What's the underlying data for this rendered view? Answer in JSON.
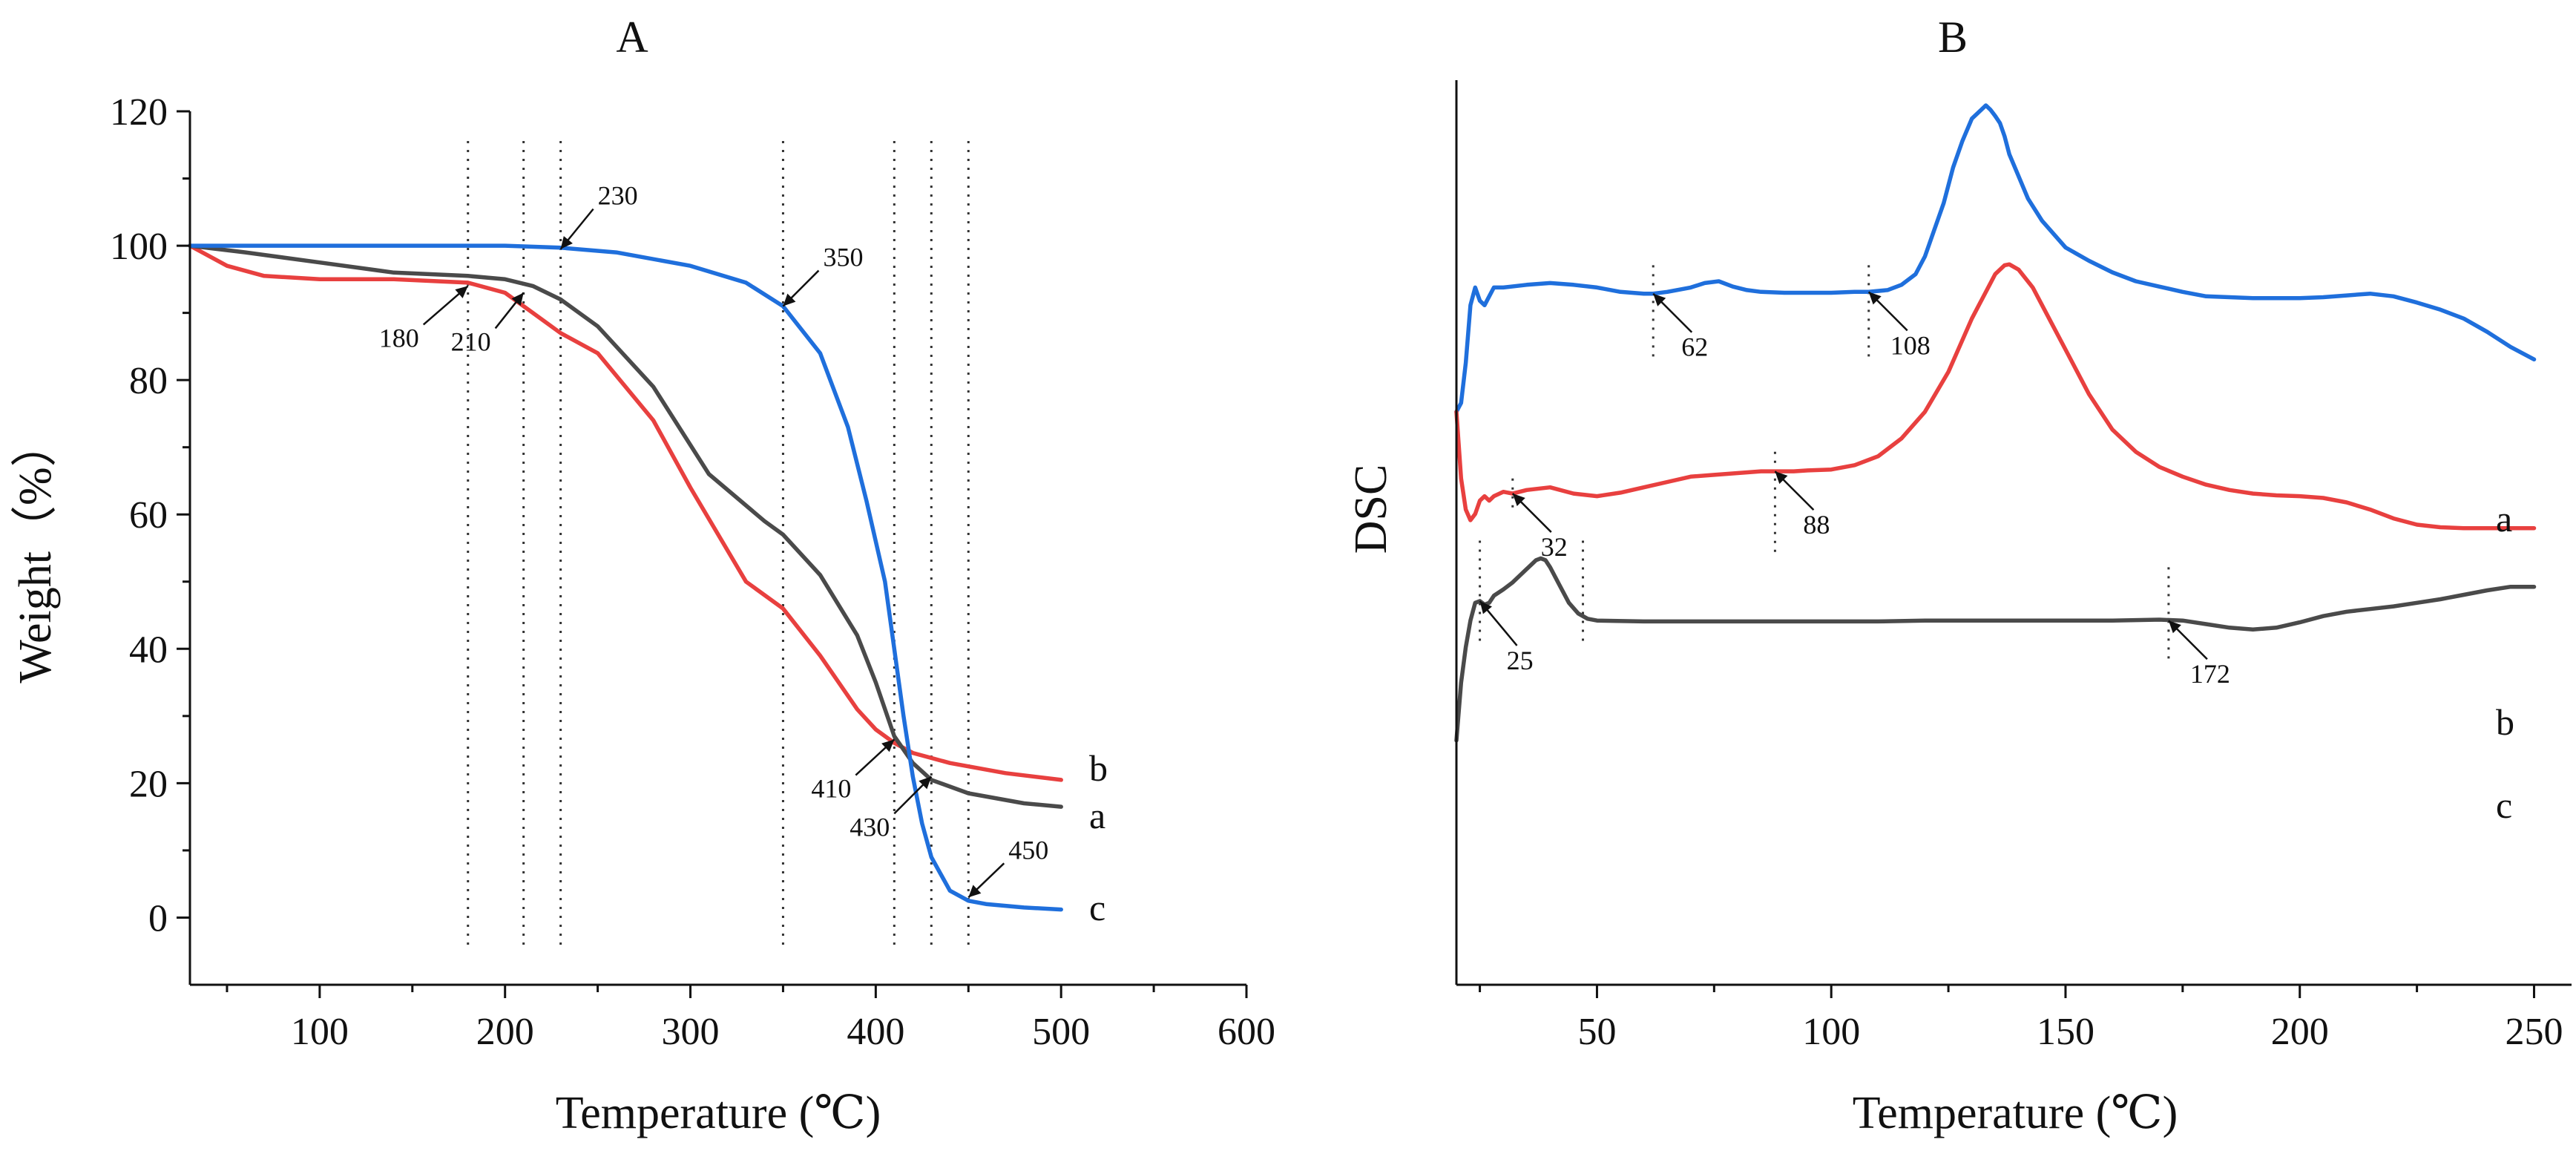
{
  "chart_data": [
    {
      "panel": "A",
      "type": "line",
      "title": "A",
      "xlabel": "Temperature (℃)",
      "ylabel": "Weight（%）",
      "xlim": [
        30,
        600
      ],
      "ylim": [
        -10,
        120
      ],
      "xticks": [
        100,
        200,
        300,
        400,
        500,
        600
      ],
      "yticks": [
        0,
        20,
        40,
        60,
        80,
        100,
        120
      ],
      "colors": {
        "a": "#4a4a4a",
        "b": "#e8403f",
        "c": "#1f6fdc"
      },
      "series": [
        {
          "name": "a",
          "x": [
            30,
            60,
            100,
            140,
            180,
            200,
            215,
            230,
            250,
            280,
            310,
            340,
            350,
            370,
            390,
            400,
            410,
            420,
            430,
            450,
            480,
            500
          ],
          "y": [
            100,
            99,
            97.5,
            96,
            95.5,
            95,
            94,
            92,
            88,
            79,
            66,
            59,
            57,
            51,
            42,
            35,
            27,
            23,
            20.5,
            18.5,
            17,
            16.5
          ]
        },
        {
          "name": "b",
          "x": [
            30,
            50,
            70,
            100,
            140,
            180,
            200,
            215,
            230,
            250,
            280,
            300,
            330,
            350,
            370,
            390,
            400,
            410,
            420,
            440,
            470,
            500
          ],
          "y": [
            100,
            97,
            95.5,
            95,
            95,
            94.5,
            93,
            90,
            87,
            84,
            74,
            64,
            50,
            46,
            39,
            31,
            28,
            26,
            24.5,
            23,
            21.5,
            20.5
          ],
          "annotations_not_curve": true
        },
        {
          "name": "c",
          "x": [
            30,
            100,
            200,
            230,
            260,
            300,
            330,
            350,
            370,
            385,
            395,
            405,
            410,
            415,
            420,
            425,
            430,
            440,
            450,
            460,
            480,
            500
          ],
          "y": [
            100,
            100,
            100,
            99.7,
            99,
            97,
            94.5,
            91,
            84,
            73,
            62,
            50,
            40,
            30,
            21,
            14,
            9,
            4,
            2.5,
            2,
            1.5,
            1.2
          ]
        }
      ],
      "vlines": [
        180,
        210,
        230,
        350,
        410,
        430,
        450
      ],
      "annotations": [
        {
          "text": "180",
          "x": 180,
          "y": 94
        },
        {
          "text": "210",
          "x": 210,
          "y": 93
        },
        {
          "text": "230",
          "x": 230,
          "y": 99.5
        },
        {
          "text": "350",
          "x": 350,
          "y": 91
        },
        {
          "text": "410",
          "x": 410,
          "y": 26.5
        },
        {
          "text": "430",
          "x": 430,
          "y": 21
        },
        {
          "text": "450",
          "x": 450,
          "y": 3
        }
      ]
    },
    {
      "panel": "B",
      "type": "line",
      "title": "B",
      "xlabel": "Temperature (℃)",
      "ylabel": "DSC",
      "xlim": [
        20,
        258
      ],
      "ylim": [
        0,
        100
      ],
      "y_tick_labels": "none",
      "xticks": [
        50,
        100,
        150,
        200,
        250
      ],
      "colors": {
        "a": "#1f6fdc",
        "b": "#e8403f",
        "c": "#4a4a4a"
      },
      "series": [
        {
          "name": "a",
          "x": [
            20,
            21,
            22,
            23,
            24,
            25,
            26,
            27,
            28,
            30,
            35,
            40,
            45,
            50,
            55,
            60,
            62,
            65,
            70,
            73,
            76,
            79,
            82,
            85,
            90,
            95,
            100,
            105,
            108,
            112,
            115,
            118,
            120,
            122,
            124,
            126,
            128,
            130,
            132,
            133,
            134,
            135,
            136,
            137,
            138,
            140,
            142,
            145,
            150,
            155,
            160,
            165,
            170,
            175,
            180,
            185,
            190,
            195,
            200,
            205,
            210,
            215,
            220,
            225,
            230,
            235,
            240,
            245,
            250
          ],
          "y": [
            64.5,
            65.5,
            70,
            76.5,
            78.5,
            77,
            76.5,
            77.5,
            78.5,
            78.5,
            78.8,
            79,
            78.8,
            78.5,
            78,
            77.8,
            77.8,
            78,
            78.5,
            79,
            79.2,
            78.6,
            78.2,
            78,
            77.9,
            77.9,
            77.9,
            78,
            78,
            78.2,
            78.8,
            80,
            82,
            85,
            88,
            92,
            95,
            97.5,
            98.5,
            99,
            98.5,
            97.8,
            97,
            95.5,
            93.5,
            91,
            88.5,
            86,
            83,
            81.5,
            80.2,
            79.2,
            78.6,
            78,
            77.5,
            77.4,
            77.3,
            77.3,
            77.3,
            77.4,
            77.6,
            77.8,
            77.5,
            76.8,
            76,
            75,
            73.5,
            71.8,
            70.4
          ]
        },
        {
          "name": "b",
          "x": [
            20,
            21,
            22,
            23,
            24,
            25,
            26,
            27,
            28,
            30,
            32,
            35,
            40,
            45,
            50,
            55,
            60,
            65,
            70,
            75,
            80,
            85,
            88,
            92,
            95,
            100,
            105,
            110,
            115,
            120,
            125,
            130,
            135,
            137,
            138,
            140,
            143,
            147,
            150,
            155,
            160,
            165,
            170,
            175,
            180,
            185,
            190,
            195,
            200,
            205,
            210,
            215,
            220,
            225,
            230,
            235,
            240,
            245,
            250
          ],
          "y": [
            64.5,
            57,
            53.5,
            52.3,
            53,
            54.5,
            55,
            54.5,
            55,
            55.5,
            55.3,
            55.7,
            56,
            55.3,
            55,
            55.4,
            56,
            56.6,
            57.2,
            57.4,
            57.6,
            57.8,
            57.8,
            57.8,
            57.9,
            58,
            58.5,
            59.5,
            61.5,
            64.5,
            69,
            75,
            80,
            81,
            81.1,
            80.5,
            78.5,
            74.5,
            71.5,
            66.5,
            62.5,
            60,
            58.3,
            57.2,
            56.3,
            55.7,
            55.3,
            55.1,
            55,
            54.8,
            54.3,
            53.5,
            52.5,
            51.8,
            51.5,
            51.4,
            51.4,
            51.4,
            51.4
          ]
        },
        {
          "name": "c",
          "x": [
            20,
            21,
            22,
            23,
            24,
            25,
            26,
            27,
            28,
            30,
            32,
            35,
            37,
            38,
            39,
            40,
            42,
            44,
            46,
            48,
            50,
            60,
            70,
            80,
            90,
            100,
            110,
            120,
            130,
            140,
            150,
            160,
            170,
            175,
            180,
            185,
            190,
            195,
            200,
            205,
            210,
            215,
            220,
            225,
            230,
            235,
            240,
            245,
            250
          ],
          "y": [
            27.5,
            34,
            38,
            41,
            43,
            43.2,
            42.8,
            43,
            43.8,
            44.5,
            45.3,
            46.8,
            47.8,
            48,
            47.8,
            47,
            45,
            43,
            41.8,
            41.2,
            41,
            40.9,
            40.9,
            40.9,
            40.9,
            40.9,
            40.9,
            41,
            41,
            41,
            41,
            41,
            41.1,
            41,
            40.6,
            40.2,
            40,
            40.2,
            40.8,
            41.5,
            42,
            42.3,
            42.6,
            43,
            43.4,
            43.9,
            44.4,
            44.8,
            44.8
          ]
        }
      ],
      "vlines": [
        25,
        32,
        47,
        62,
        88,
        108,
        172
      ],
      "annotations": [
        {
          "text": "62",
          "x": 62,
          "y": 77.8
        },
        {
          "text": "108",
          "x": 108,
          "y": 78
        },
        {
          "text": "32",
          "x": 32,
          "y": 55.3
        },
        {
          "text": "88",
          "x": 88,
          "y": 57.8
        },
        {
          "text": "25",
          "x": 25,
          "y": 43.2
        },
        {
          "text": "172",
          "x": 172,
          "y": 41
        }
      ]
    }
  ]
}
